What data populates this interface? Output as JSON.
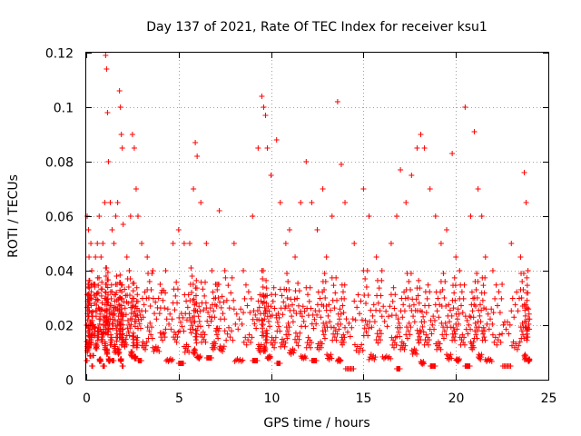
{
  "chart_data": {
    "type": "scatter",
    "title": "Day 137 of 2021, Rate Of TEC Index for receiver ksu1",
    "xlabel": "GPS time / hours",
    "ylabel": "ROTI / TECUs",
    "xlim": [
      0,
      25
    ],
    "ylim": [
      0,
      0.12
    ],
    "x_ticks": [
      "0",
      "5",
      "10",
      "15",
      "20",
      "25"
    ],
    "y_ticks": [
      "0",
      "0.02",
      "0.04",
      "0.06",
      "0.08",
      "0.1",
      "0.12"
    ],
    "grid": true,
    "marker": "+",
    "color": "#ff0000",
    "series": [
      {
        "x": [
          0.02,
          0.05,
          0.1,
          0.12,
          0.15,
          0.2,
          0.25,
          0.3,
          0.35,
          0.4,
          0.5,
          0.6,
          0.7,
          0.8,
          0.9,
          1.0,
          1.05,
          1.1,
          1.15,
          1.2,
          1.3,
          1.4,
          1.5,
          1.6,
          1.7,
          1.8,
          1.85,
          1.9,
          1.95,
          2.0,
          2.2,
          2.4,
          2.5,
          2.6,
          2.7,
          2.8,
          3.0,
          3.3,
          3.6,
          4.0,
          4.3,
          4.7,
          5.0,
          5.3,
          5.6,
          5.8,
          5.9,
          6.0,
          6.2,
          6.5,
          6.8,
          7.0,
          7.2,
          7.5,
          8.0,
          8.5,
          9.0,
          9.3,
          9.5,
          9.6,
          9.7,
          9.8,
          10.0,
          10.3,
          10.5,
          10.8,
          11.0,
          11.3,
          11.6,
          11.9,
          12.2,
          12.5,
          12.8,
          13.0,
          13.3,
          13.6,
          13.8,
          14.0,
          14.5,
          15.0,
          15.3,
          15.7,
          16.0,
          16.5,
          16.8,
          17.0,
          17.3,
          17.6,
          17.9,
          18.1,
          18.3,
          18.6,
          18.9,
          19.2,
          19.5,
          19.8,
          20.0,
          20.2,
          20.5,
          20.8,
          21.0,
          21.2,
          21.4,
          21.6,
          22.0,
          22.5,
          23.0,
          23.5,
          23.7,
          23.8,
          23.9
        ],
        "y": [
          0.02,
          0.06,
          0.035,
          0.055,
          0.045,
          0.03,
          0.05,
          0.04,
          0.025,
          0.035,
          0.045,
          0.05,
          0.06,
          0.045,
          0.05,
          0.065,
          0.119,
          0.114,
          0.098,
          0.08,
          0.065,
          0.055,
          0.05,
          0.06,
          0.065,
          0.106,
          0.1,
          0.09,
          0.085,
          0.057,
          0.045,
          0.06,
          0.09,
          0.085,
          0.07,
          0.06,
          0.05,
          0.045,
          0.04,
          0.035,
          0.04,
          0.05,
          0.055,
          0.05,
          0.05,
          0.07,
          0.087,
          0.082,
          0.065,
          0.05,
          0.04,
          0.035,
          0.062,
          0.04,
          0.05,
          0.04,
          0.06,
          0.085,
          0.104,
          0.1,
          0.097,
          0.085,
          0.075,
          0.088,
          0.065,
          0.05,
          0.055,
          0.045,
          0.065,
          0.08,
          0.065,
          0.055,
          0.07,
          0.045,
          0.06,
          0.102,
          0.079,
          0.065,
          0.05,
          0.07,
          0.06,
          0.045,
          0.04,
          0.05,
          0.06,
          0.077,
          0.065,
          0.075,
          0.085,
          0.09,
          0.085,
          0.07,
          0.06,
          0.05,
          0.055,
          0.083,
          0.045,
          0.04,
          0.1,
          0.06,
          0.091,
          0.07,
          0.06,
          0.045,
          0.04,
          0.035,
          0.05,
          0.045,
          0.076,
          0.065,
          0.04
        ],
        "y_low": [
          0.007,
          0.005,
          0.006,
          0.008,
          0.005,
          0.007,
          0.006,
          0.005,
          0.004,
          0.006,
          0.008,
          0.006,
          0.005,
          0.007,
          0.005,
          0.006,
          0.007,
          0.006,
          0.008,
          0.005,
          0.006,
          0.007,
          0.005,
          0.004,
          0.006,
          0.007,
          0.005,
          0.006,
          0.005,
          0.007,
          0.006,
          0.005,
          0.004,
          0.006,
          0.005,
          0.007,
          0.006,
          0.005,
          0.007,
          0.006,
          0.005,
          0.007,
          0.006,
          0.005,
          0.007,
          0.006,
          0.005,
          0.006,
          0.007,
          0.008,
          0.006,
          0.005,
          0.007,
          0.006,
          0.005,
          0.006,
          0.007,
          0.005,
          0.006,
          0.007,
          0.005,
          0.006,
          0.005,
          0.006,
          0.007,
          0.005,
          0.006,
          0.004,
          0.006,
          0.005,
          0.007,
          0.006,
          0.005,
          0.004,
          0.006,
          0.005,
          0.006,
          0.004,
          0.005,
          0.006,
          0.004,
          0.005,
          0.006,
          0.005,
          0.004,
          0.006,
          0.005,
          0.006,
          0.005,
          0.004,
          0.006,
          0.005,
          0.006,
          0.005,
          0.004,
          0.006,
          0.005,
          0.006,
          0.005,
          0.006,
          0.005,
          0.004,
          0.006,
          0.005,
          0.006,
          0.005,
          0.006,
          0.005,
          0.004,
          0.006,
          0.005
        ]
      }
    ]
  }
}
